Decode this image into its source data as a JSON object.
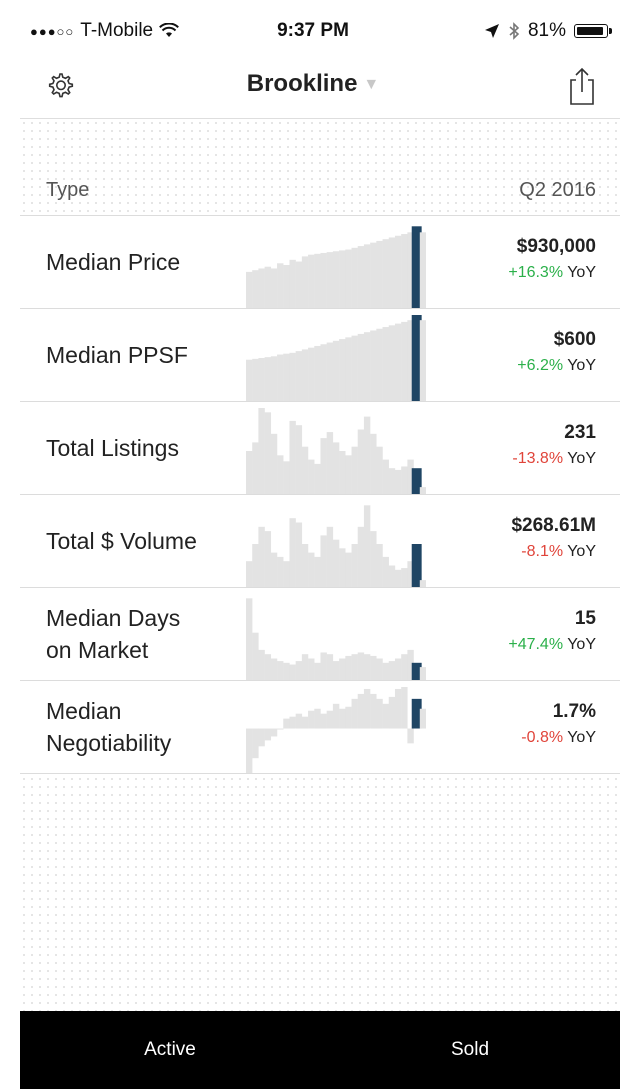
{
  "status_bar": {
    "signal_dots": "●●●○○",
    "carrier": "T-Mobile",
    "time": "9:37 PM",
    "battery": "81%",
    "battery_level": 0.81
  },
  "header": {
    "title": "Brookline",
    "icons": [
      "gear-icon",
      "caret-down-icon",
      "share-icon"
    ]
  },
  "table_header": {
    "type_label": "Type",
    "period": "Q2 2016"
  },
  "metrics": [
    {
      "label_lines": [
        "Median Price"
      ],
      "value": "$930,000",
      "change": "+16.3%",
      "change_dir": "pos",
      "suffix": "YoY",
      "bars": [
        0.42,
        0.44,
        0.46,
        0.48,
        0.46,
        0.52,
        0.5,
        0.56,
        0.54,
        0.6,
        0.62,
        0.63,
        0.64,
        0.65,
        0.66,
        0.67,
        0.68,
        0.7,
        0.72,
        0.74,
        0.76,
        0.78,
        0.8,
        0.82,
        0.84,
        0.86,
        0.88,
        0.95,
        0.88
      ]
    },
    {
      "label_lines": [
        "Median PPSF"
      ],
      "value": "$600",
      "change": "+6.2%",
      "change_dir": "pos",
      "suffix": "YoY",
      "bars": [
        0.48,
        0.49,
        0.5,
        0.51,
        0.52,
        0.54,
        0.55,
        0.56,
        0.58,
        0.6,
        0.62,
        0.64,
        0.66,
        0.68,
        0.7,
        0.72,
        0.74,
        0.76,
        0.78,
        0.8,
        0.82,
        0.84,
        0.86,
        0.88,
        0.9,
        0.92,
        0.94,
        1.0,
        0.94
      ]
    },
    {
      "label_lines": [
        "Total Listings"
      ],
      "value": "231",
      "change": "-13.8%",
      "change_dir": "neg",
      "suffix": "YoY",
      "bars": [
        0.5,
        0.6,
        1.0,
        0.95,
        0.7,
        0.45,
        0.38,
        0.85,
        0.8,
        0.55,
        0.4,
        0.35,
        0.65,
        0.72,
        0.6,
        0.5,
        0.45,
        0.55,
        0.75,
        0.9,
        0.7,
        0.55,
        0.4,
        0.3,
        0.28,
        0.32,
        0.4,
        0.3,
        0.08
      ]
    },
    {
      "label_lines": [
        "Total $ Volume"
      ],
      "value": "$268.61M",
      "change": "-8.1%",
      "change_dir": "neg",
      "suffix": "YoY",
      "bars": [
        0.3,
        0.5,
        0.7,
        0.65,
        0.4,
        0.35,
        0.3,
        0.8,
        0.75,
        0.5,
        0.4,
        0.35,
        0.6,
        0.7,
        0.55,
        0.45,
        0.4,
        0.5,
        0.7,
        0.95,
        0.65,
        0.5,
        0.35,
        0.25,
        0.2,
        0.22,
        0.3,
        0.5,
        0.08
      ]
    },
    {
      "label_lines": [
        "Median Days",
        "on Market"
      ],
      "value": "15",
      "change": "+47.4%",
      "change_dir": "pos",
      "suffix": "YoY",
      "bars": [
        0.95,
        0.55,
        0.35,
        0.3,
        0.25,
        0.22,
        0.2,
        0.18,
        0.22,
        0.3,
        0.25,
        0.2,
        0.32,
        0.3,
        0.22,
        0.25,
        0.28,
        0.3,
        0.32,
        0.3,
        0.28,
        0.25,
        0.2,
        0.22,
        0.25,
        0.3,
        0.35,
        0.2,
        0.15
      ]
    },
    {
      "label_lines": [
        "Median",
        "Negotiability"
      ],
      "value": "1.7%",
      "change": "-0.8%",
      "change_dir": "neg",
      "suffix": "YoY",
      "bars": [
        -0.45,
        -0.3,
        -0.18,
        -0.12,
        -0.08,
        0.0,
        0.1,
        0.12,
        0.15,
        0.12,
        0.18,
        0.2,
        0.15,
        0.18,
        0.25,
        0.2,
        0.22,
        0.3,
        0.35,
        0.4,
        0.35,
        0.3,
        0.25,
        0.32,
        0.4,
        0.42,
        -0.15,
        0.3,
        0.2
      ]
    }
  ],
  "tabs": [
    {
      "label": "Active",
      "active": false
    },
    {
      "label": "Sold",
      "active": true
    }
  ]
}
